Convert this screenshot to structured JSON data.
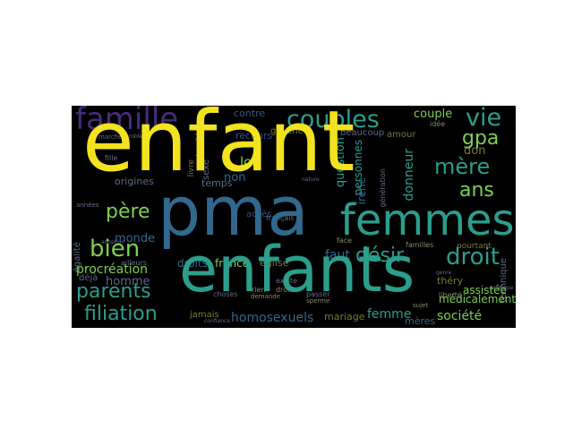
{
  "colors": {
    "background": "#000000",
    "yellow": "#f2e31e",
    "teal": "#2b9e8c",
    "blue": "#31688e",
    "green": "#7ad151",
    "purple": "#472c7a",
    "dark_purple": "#3b1e57"
  },
  "words": {
    "enfant": "enfant",
    "pma": "pma",
    "enfants": "enfants",
    "femmes": "femmes",
    "famille": "famille",
    "couples": "couples",
    "vie": "vie",
    "gpa": "gpa",
    "mere": "mère",
    "ans": "ans",
    "pere": "père",
    "bien": "bien",
    "parents": "parents",
    "filiation": "filiation",
    "droit": "droit",
    "desir": "désir",
    "procreation": "procréation",
    "homosexuels": "homosexuels",
    "societe": "société",
    "femme": "femme",
    "mariage": "mariage",
    "couple": "couple",
    "don": "don",
    "loi": "loi",
    "non": "non",
    "faut": "faut",
    "monde": "monde",
    "homme": "homme",
    "droits": "droits",
    "france": "france",
    "eglise": "église",
    "donneur": "donneur",
    "medicalement": "médicalement",
    "assistee": "assistée",
    "question": "question",
    "personnes": "personnes",
    "irene": "irène",
    "thery": "théry",
    "meres": "mères",
    "recours": "recours",
    "contre": "contre",
    "gauche": "gauche",
    "beaucoup": "beaucoup",
    "amour": "amour",
    "temps": "temps",
    "sexe": "sexe",
    "acces": "accès",
    "origines": "origines",
    "deja": "déjà",
    "jamais": "jamais",
    "technique": "technique",
    "egalite": "égalité",
    "pourtant": "pourtant",
    "familles": "familles",
    "francais": "français",
    "face": "face",
    "liberte": "liberté",
    "droite": "droite",
    "rien": "rien",
    "idee": "idée",
    "livre": "livre",
    "fille": "fille",
    "generation": "génération",
    "marche": "marché",
    "ailleurs": "ailleurs",
    "passer": "passer",
    "choses": "choses",
    "existe": "existe",
    "maternite": "maternité",
    "annees": "années",
    "nature": "nature",
    "sujet": "sujet",
    "genre": "genre",
    "pratique": "pratique",
    "probleme": "problème",
    "sperme": "sperme",
    "demande": "demande",
    "confiance": "confiance",
    "adoption": "adoption"
  }
}
